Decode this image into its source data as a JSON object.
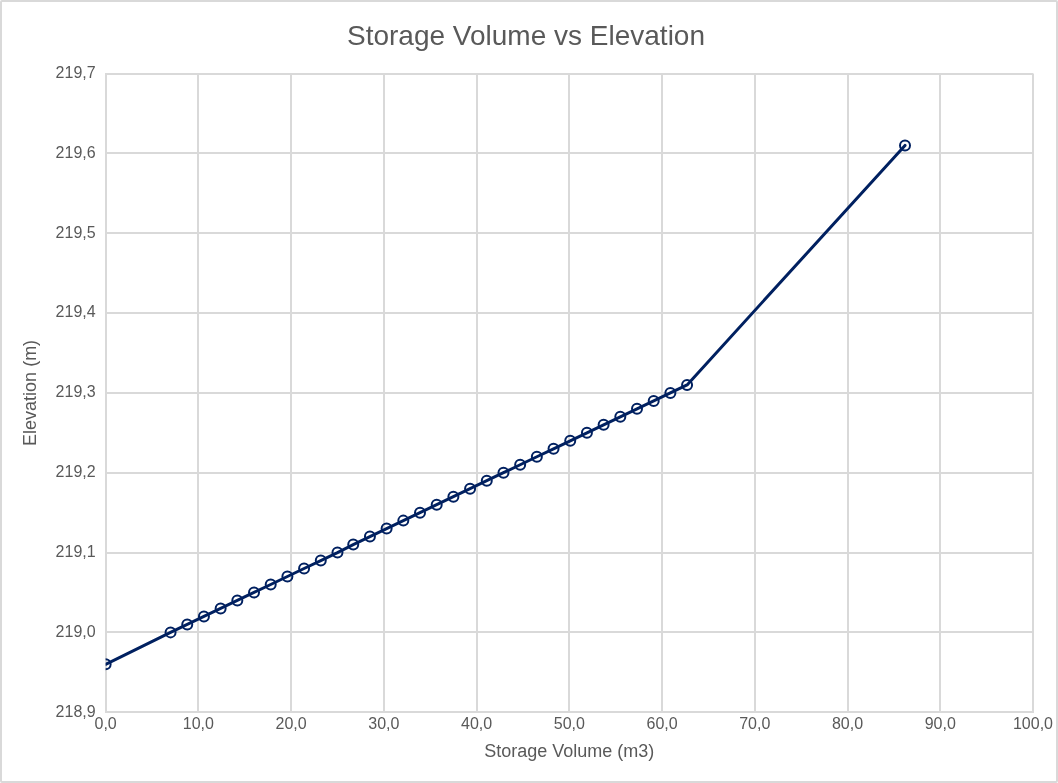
{
  "chart_data": {
    "type": "line",
    "title": "Storage Volume vs Elevation",
    "xlabel": "Storage Volume (m3)",
    "ylabel": "Elevation (m)",
    "x": [
      0,
      7.0,
      8.8,
      10.6,
      12.4,
      14.2,
      16.0,
      17.8,
      19.6,
      21.4,
      23.2,
      25.0,
      26.7,
      28.5,
      30.3,
      32.1,
      33.9,
      35.7,
      37.5,
      39.3,
      41.1,
      42.9,
      44.7,
      46.5,
      48.3,
      50.1,
      51.9,
      53.7,
      55.5,
      57.3,
      59.1,
      60.9,
      62.7,
      86.2
    ],
    "series": [
      {
        "color": "#002060",
        "values": [
          218.96,
          219.0,
          219.01,
          219.02,
          219.03,
          219.04,
          219.05,
          219.06,
          219.07,
          219.08,
          219.09,
          219.1,
          219.11,
          219.12,
          219.13,
          219.14,
          219.15,
          219.16,
          219.17,
          219.18,
          219.19,
          219.2,
          219.21,
          219.22,
          219.23,
          219.24,
          219.25,
          219.26,
          219.27,
          219.28,
          219.29,
          219.3,
          219.31,
          219.61
        ]
      }
    ],
    "xlim": [
      0,
      100
    ],
    "xticks": [
      {
        "value": 0,
        "label": "0,0"
      },
      {
        "value": 10,
        "label": "10,0"
      },
      {
        "value": 20,
        "label": "20,0"
      },
      {
        "value": 30,
        "label": "30,0"
      },
      {
        "value": 40,
        "label": "40,0"
      },
      {
        "value": 50,
        "label": "50,0"
      },
      {
        "value": 60,
        "label": "60,0"
      },
      {
        "value": 70,
        "label": "70,0"
      },
      {
        "value": 80,
        "label": "80,0"
      },
      {
        "value": 90,
        "label": "90,0"
      },
      {
        "value": 100,
        "label": "100,0"
      }
    ],
    "ylim": [
      218.9,
      219.7
    ],
    "yticks": [
      {
        "value": 218.9,
        "label": "218,9"
      },
      {
        "value": 219.0,
        "label": "219,0"
      },
      {
        "value": 219.1,
        "label": "219,1"
      },
      {
        "value": 219.2,
        "label": "219,2"
      },
      {
        "value": 219.3,
        "label": "219,3"
      },
      {
        "value": 219.4,
        "label": "219,4"
      },
      {
        "value": 219.5,
        "label": "219,5"
      },
      {
        "value": 219.6,
        "label": "219,6"
      },
      {
        "value": 219.7,
        "label": "219,7"
      }
    ],
    "grid": true,
    "marker": "circle",
    "line_style": "solid"
  }
}
